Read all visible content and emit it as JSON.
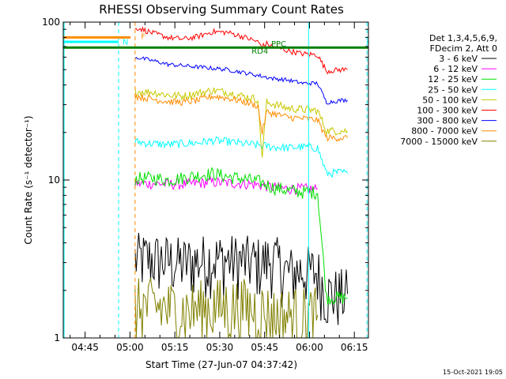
{
  "chart_data": {
    "type": "line",
    "title": "RHESSI Observing Summary Count Rates",
    "xlabel": "Start Time (27-Jun-07 04:37:42)",
    "ylabel": "Count Rate (s⁻¹ detector⁻¹)",
    "xlim_minutes_after_0437": [
      0,
      102
    ],
    "ylim": [
      1,
      100
    ],
    "yscale": "log",
    "x_ticks": [
      {
        "label": "04:45",
        "minute": 7.3
      },
      {
        "label": "05:00",
        "minute": 22.3
      },
      {
        "label": "05:15",
        "minute": 37.3
      },
      {
        "label": "05:30",
        "minute": 52.3
      },
      {
        "label": "05:45",
        "minute": 67.3
      },
      {
        "label": "06:00",
        "minute": 82.3
      },
      {
        "label": "06:15",
        "minute": 97.3
      }
    ],
    "y_ticks": [
      {
        "label": "1",
        "value": 1
      },
      {
        "label": "10",
        "value": 10
      },
      {
        "label": "100",
        "value": 100
      }
    ],
    "legend_header": [
      "Det 1,3,4,5,6,9,",
      "FDecim 2, Att 0"
    ],
    "legend_placement": "right",
    "series": [
      {
        "name": "3 - 6 keV",
        "color": "#000000",
        "x": [
          0,
          20,
          23,
          24,
          30,
          40,
          50,
          60,
          66,
          70,
          75,
          80,
          85,
          88,
          93,
          95
        ],
        "values": [
          null,
          null,
          null,
          3.2,
          3.2,
          3.0,
          3.2,
          3.1,
          3.0,
          3.2,
          2.6,
          2.7,
          2.6,
          1.9,
          1.9,
          1.9
        ]
      },
      {
        "name": "6 - 12 keV",
        "color": "#ff00ff",
        "x": [
          24,
          30,
          40,
          50,
          60,
          66,
          70,
          75,
          80,
          85
        ],
        "values": [
          9.5,
          9.5,
          9.4,
          9.7,
          9.5,
          9.3,
          9.0,
          8.8,
          8.8,
          8.8
        ]
      },
      {
        "name": "12 - 25 keV",
        "color": "#00e000",
        "x": [
          24,
          30,
          35,
          45,
          50,
          55,
          60,
          66,
          70,
          75,
          80,
          85,
          88,
          93,
          95
        ],
        "values": [
          10.2,
          10.3,
          10.0,
          10.7,
          11.0,
          10.5,
          10.2,
          9.7,
          9.0,
          8.6,
          8.4,
          8.4,
          1.8,
          1.8,
          1.8
        ]
      },
      {
        "name": "25 - 50 keV",
        "color": "#00ffff",
        "x": [
          24,
          30,
          35,
          45,
          50,
          55,
          60,
          66,
          70,
          75,
          80,
          85,
          88,
          93,
          95
        ],
        "values": [
          17.5,
          17.0,
          16.8,
          17.2,
          17.8,
          17.5,
          17.0,
          16.6,
          16.2,
          16.0,
          16.2,
          16.0,
          11.0,
          11.2,
          11.0
        ]
      },
      {
        "name": "50 - 100 keV",
        "color": "#c8c800",
        "x": [
          24,
          30,
          35,
          40,
          45,
          50,
          55,
          60,
          65,
          66.5,
          68,
          70,
          75,
          80,
          85,
          88,
          93,
          95
        ],
        "values": [
          36.5,
          36.0,
          34.5,
          34.0,
          35.5,
          37.0,
          36.0,
          34.0,
          32.5,
          14.0,
          31.0,
          30.5,
          28.5,
          28.0,
          27.5,
          20.5,
          20.5,
          20.5
        ]
      },
      {
        "name": "100 - 300 keV",
        "color": "#ff0000",
        "x": [
          24,
          25,
          30,
          35,
          40,
          45,
          50,
          55,
          60,
          65,
          66.5,
          68,
          70,
          75,
          80,
          85,
          88,
          93,
          95
        ],
        "values": [
          90,
          92,
          85,
          80,
          78,
          81,
          87,
          86,
          81,
          75,
          70,
          73,
          70,
          66,
          63,
          62,
          49,
          50,
          50
        ]
      },
      {
        "name": "300 - 800 keV",
        "color": "#0000ff",
        "x": [
          24,
          30,
          35,
          40,
          45,
          50,
          55,
          60,
          65,
          70,
          75,
          80,
          85,
          88,
          93,
          95
        ],
        "values": [
          60,
          57,
          54,
          53,
          52,
          51,
          50,
          48,
          46,
          44,
          43,
          41,
          41,
          31,
          32,
          32
        ]
      },
      {
        "name": "800 - 7000 keV",
        "color": "#ff8c00",
        "x": [
          24,
          30,
          35,
          40,
          45,
          50,
          55,
          60,
          65,
          66.5,
          68,
          70,
          75,
          80,
          85,
          88,
          93,
          95
        ],
        "values": [
          34.0,
          32.5,
          31.5,
          31.0,
          32.0,
          34.0,
          33.0,
          31.5,
          29.5,
          20.0,
          27.0,
          26.5,
          25.0,
          24.5,
          24.0,
          18.5,
          18.5,
          18.5
        ]
      },
      {
        "name": "7000 - 15000 keV",
        "color": "#808000",
        "x": [
          24,
          30,
          40,
          50,
          60,
          66,
          70,
          75,
          80,
          85
        ],
        "values": [
          1.6,
          1.6,
          1.5,
          1.6,
          1.6,
          1.5,
          1.4,
          1.4,
          1.4,
          1.4
        ]
      }
    ],
    "annotations": [
      {
        "text": "N",
        "color": "#00ffff"
      },
      {
        "text": "F",
        "color": "#ff8c00"
      },
      {
        "text": "RD4",
        "color": "#008000"
      },
      {
        "text": "PPC",
        "color": "#008000"
      }
    ],
    "timestamp": "15-Oct-2021 19:05"
  }
}
